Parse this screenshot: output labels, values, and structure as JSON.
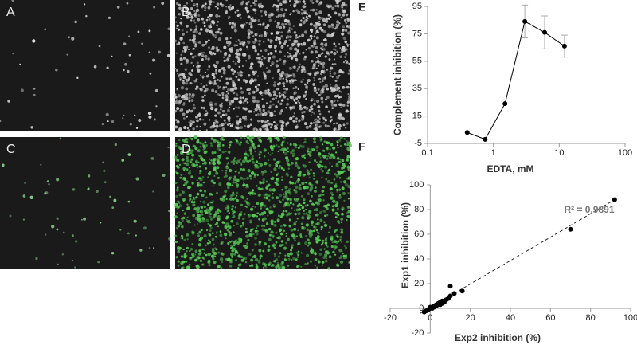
{
  "images": [
    {
      "label": "A"
    },
    {
      "label": "B"
    },
    {
      "label": "C"
    },
    {
      "label": "D"
    }
  ],
  "chart_data": [
    {
      "type": "line",
      "panel": "E",
      "xlabel": "EDTA, mM",
      "ylabel": "Complement inhibition (%)",
      "xscale": "log",
      "x": [
        0.4,
        0.75,
        1.5,
        3,
        6,
        12
      ],
      "series": [
        {
          "color": "#000000",
          "values": [
            3,
            -2,
            24,
            84,
            76,
            66
          ],
          "errors": [
            null,
            null,
            null,
            12,
            12,
            8
          ]
        }
      ],
      "xlim": [
        0.1,
        100
      ],
      "xticks": [
        0.1,
        1,
        10,
        100
      ],
      "ylim": [
        -5,
        95
      ],
      "yticks": [
        -5,
        15,
        35,
        55,
        75,
        95
      ]
    },
    {
      "type": "scatter",
      "panel": "F",
      "xlabel": "Exp2 inhibition (%)",
      "ylabel": "Exp1 inhibition (%)",
      "annotation": "R² = 0.9891",
      "color": "#000000",
      "x": [
        -3,
        -2,
        -1,
        0,
        0,
        1,
        1,
        2,
        2,
        3,
        3,
        4,
        4,
        5,
        5,
        6,
        6,
        7,
        8,
        9,
        10,
        10,
        12,
        16,
        70,
        92
      ],
      "values": [
        -3,
        -2,
        -1,
        0,
        1,
        0,
        1,
        1,
        2,
        2,
        3,
        3,
        4,
        3,
        5,
        4,
        6,
        5,
        7,
        8,
        18,
        10,
        12,
        14,
        64,
        88
      ],
      "trendline": {
        "x": [
          -5,
          92
        ],
        "y": [
          -4,
          88
        ]
      },
      "xlim": [
        -20,
        100
      ],
      "xticks": [
        -20,
        0,
        20,
        40,
        60,
        80,
        100
      ],
      "ylim": [
        -20,
        100
      ],
      "yticks": [
        -20,
        0,
        20,
        40,
        60,
        80,
        100
      ]
    }
  ]
}
